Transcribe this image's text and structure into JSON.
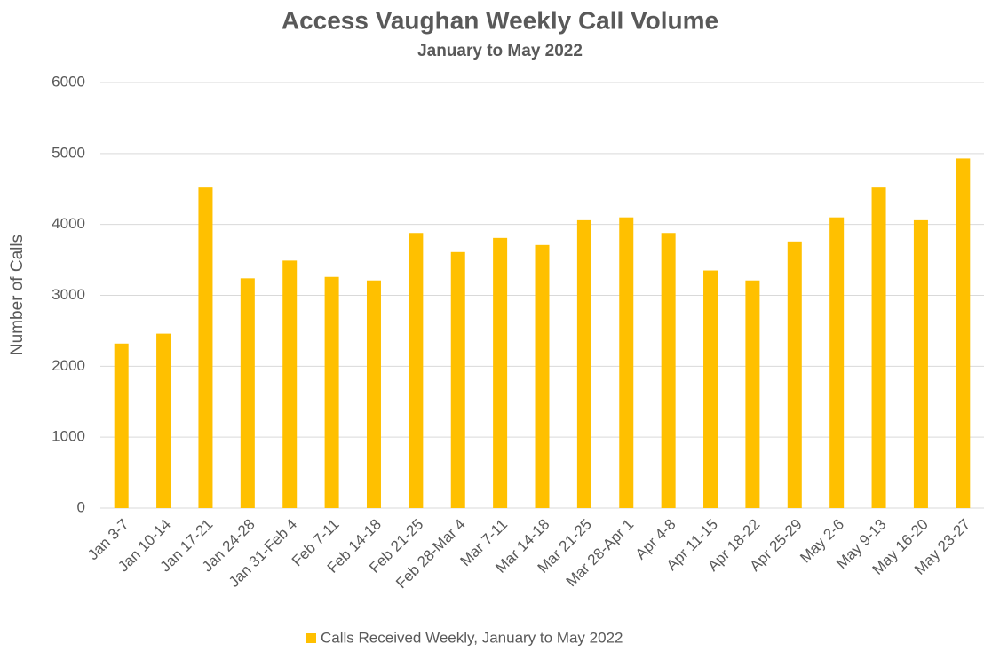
{
  "chart_data": {
    "type": "bar",
    "title": "Access Vaughan Weekly Call Volume",
    "subtitle": "January to May 2022",
    "y_label": "Number of Calls",
    "categories": [
      "Jan 3-7",
      "Jan 10-14",
      "Jan 17-21",
      "Jan 24-28",
      "Jan 31-Feb 4",
      "Feb 7-11",
      "Feb 14-18",
      "Feb 21-25",
      "Feb 28-Mar 4",
      "Mar 7-11",
      "Mar 14-18",
      "Mar 21-25",
      "Mar 28-Apr 1",
      "Apr 4-8",
      "Apr 11-15",
      "Apr 18-22",
      "Apr 25-29",
      "May 2-6",
      "May 9-13",
      "May 16-20",
      "May 23-27"
    ],
    "series": [
      {
        "name": "Calls Received Weekly, January to May 2022",
        "color": "#FFC000",
        "values": [
          2320,
          2460,
          4520,
          3240,
          3490,
          3260,
          3210,
          3880,
          3610,
          3810,
          3710,
          4060,
          4100,
          3880,
          3350,
          3210,
          3760,
          4100,
          4520,
          4060,
          4930
        ]
      }
    ],
    "ylim": [
      0,
      6000
    ],
    "yticks": [
      0,
      1000,
      2000,
      3000,
      4000,
      5000,
      6000
    ],
    "grid": true,
    "legend": "bottom"
  }
}
